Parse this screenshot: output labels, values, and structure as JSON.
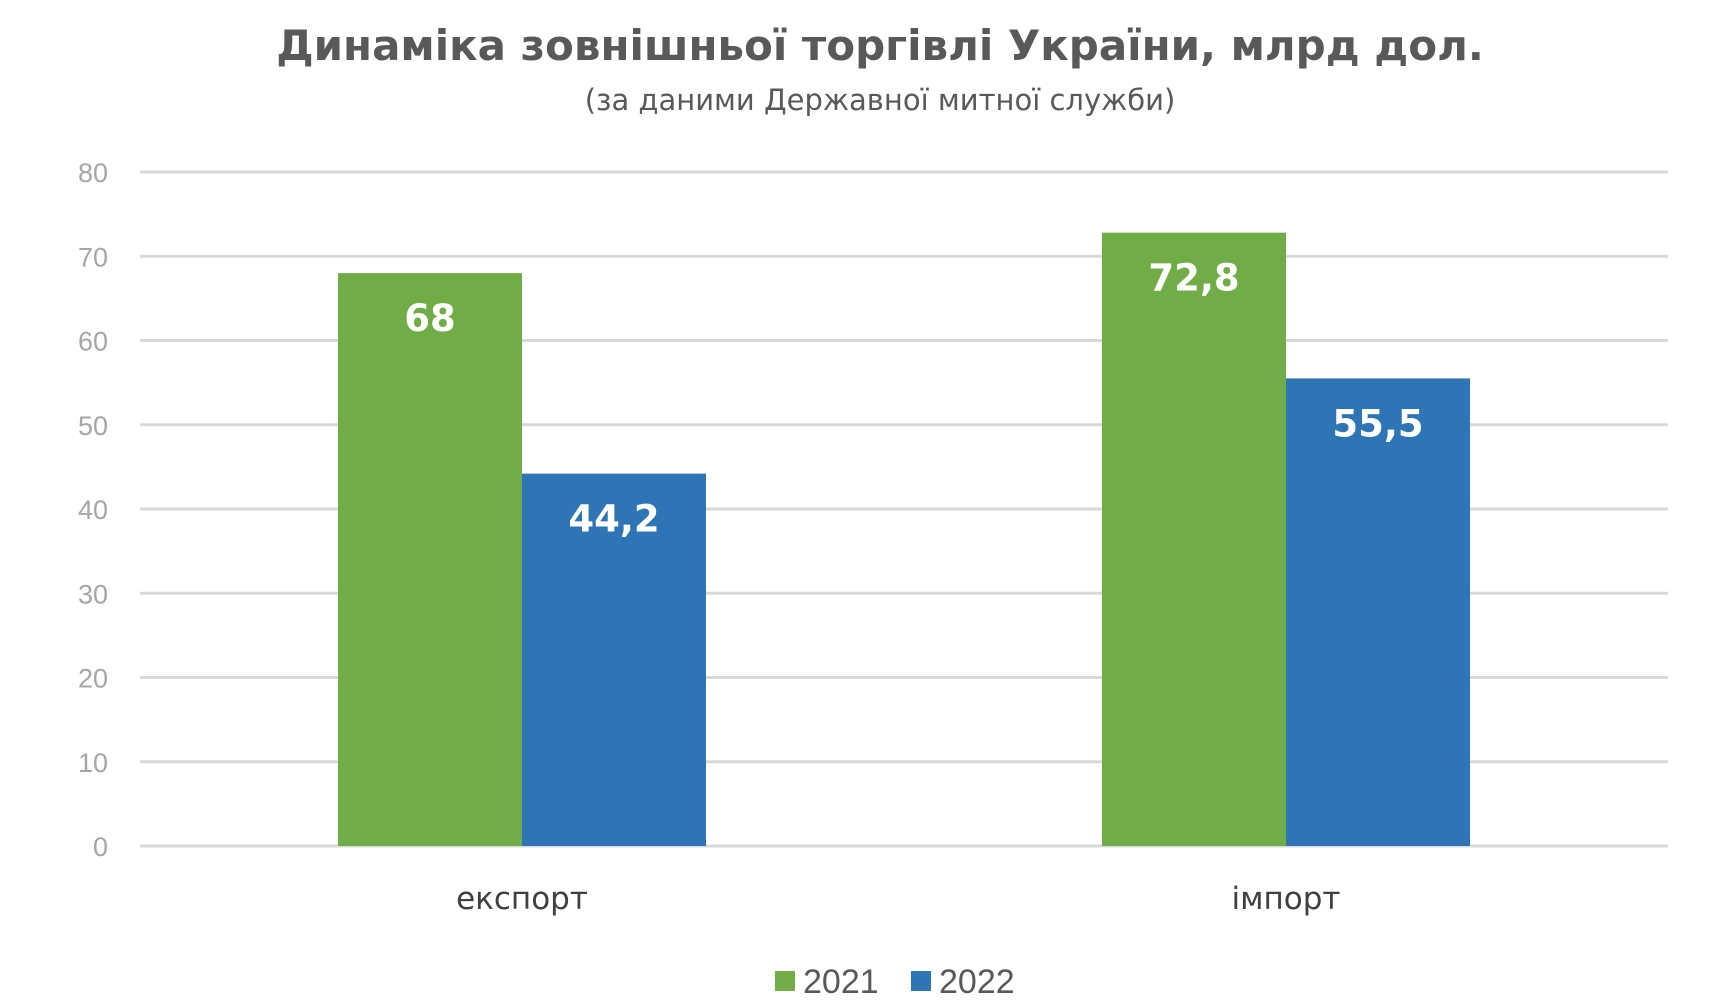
{
  "chart_data": {
    "type": "bar",
    "title": "Динаміка зовнішньої торгівлі України, млрд дол.",
    "subtitle": "(за даними Державної митної служби)",
    "categories": [
      "експорт",
      "імпорт"
    ],
    "series": [
      {
        "name": "2021",
        "values": [
          68,
          72.8
        ],
        "labels": [
          "68",
          "72,8"
        ],
        "color": "#70ad47"
      },
      {
        "name": "2022",
        "values": [
          44.2,
          55.5
        ],
        "labels": [
          "44,2",
          "55,5"
        ],
        "color": "#2e75b6"
      }
    ],
    "ylim": [
      0,
      80
    ],
    "yticks": [
      "0",
      "10",
      "20",
      "30",
      "40",
      "50",
      "60",
      "70",
      "80"
    ],
    "grid": true,
    "legend_position": "bottom-center",
    "xlabel": "",
    "ylabel": ""
  }
}
